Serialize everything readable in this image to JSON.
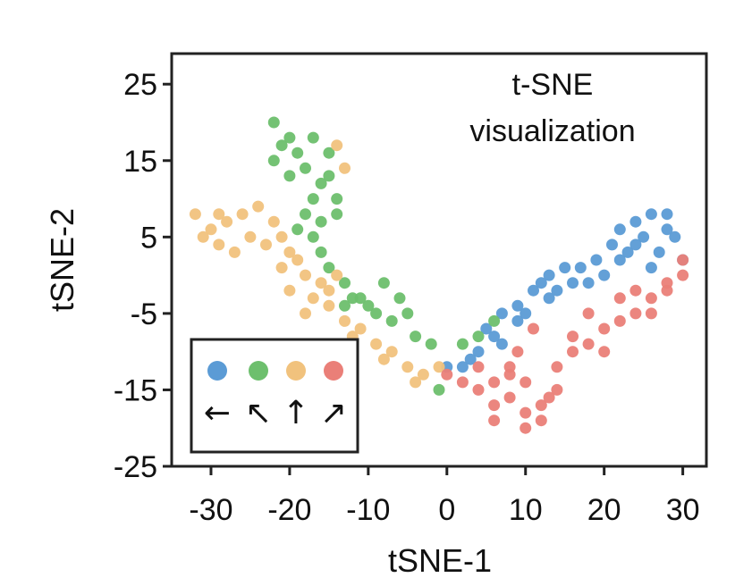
{
  "chart_data": {
    "type": "scatter",
    "annotation_lines": [
      "t-SNE",
      "visualization"
    ],
    "xlabel": "tSNE-1",
    "ylabel": "tSNE-2",
    "xlim": [
      -35,
      33
    ],
    "ylim": [
      -25,
      29
    ],
    "xticks": [
      -30,
      -20,
      -10,
      0,
      10,
      20,
      30
    ],
    "xtick_labels": [
      "-30",
      "-20",
      "-10",
      "0",
      "10",
      "20",
      "30"
    ],
    "yticks": [
      25,
      15,
      5,
      -5,
      -15,
      -25
    ],
    "ytick_labels": [
      "25",
      "15",
      "5",
      "-5",
      "-15",
      "-25"
    ],
    "grid": false,
    "legend_position": "bottom-left",
    "series": [
      {
        "color": "#5b9bd5",
        "marker": "←",
        "points": [
          [
            24,
            7
          ],
          [
            26,
            8
          ],
          [
            28,
            8
          ],
          [
            22,
            6
          ],
          [
            29,
            5
          ],
          [
            25,
            5
          ],
          [
            21,
            4
          ],
          [
            27,
            3
          ],
          [
            23,
            3
          ],
          [
            19,
            2
          ],
          [
            17,
            1
          ],
          [
            20,
            0
          ],
          [
            15,
            1
          ],
          [
            13,
            0
          ],
          [
            16,
            -1
          ],
          [
            11,
            -2
          ],
          [
            13,
            -3
          ],
          [
            9,
            -4
          ],
          [
            7,
            -5
          ],
          [
            9,
            -6
          ],
          [
            5,
            -7
          ],
          [
            7,
            -9
          ],
          [
            4,
            -10
          ],
          [
            2,
            -12
          ],
          [
            0,
            -12
          ],
          [
            22,
            2
          ],
          [
            30,
            2
          ],
          [
            26,
            1
          ],
          [
            18,
            -1
          ],
          [
            10,
            -5
          ],
          [
            6,
            -8
          ],
          [
            3,
            -11
          ],
          [
            24,
            4
          ],
          [
            28,
            6
          ],
          [
            14,
            -2
          ],
          [
            12,
            -1
          ]
        ]
      },
      {
        "color": "#6dbf6d",
        "marker": "↖",
        "points": [
          [
            -22,
            20
          ],
          [
            -20,
            18
          ],
          [
            -19,
            16
          ],
          [
            -22,
            15
          ],
          [
            -18,
            14
          ],
          [
            -16,
            12
          ],
          [
            -20,
            13
          ],
          [
            -17,
            10
          ],
          [
            -18,
            8
          ],
          [
            -19,
            6
          ],
          [
            -17,
            5
          ],
          [
            -16,
            3
          ],
          [
            -15,
            1
          ],
          [
            -13,
            -1
          ],
          [
            -12,
            -3
          ],
          [
            -10,
            -4
          ],
          [
            -8,
            -1
          ],
          [
            -6,
            -3
          ],
          [
            -5,
            -5
          ],
          [
            -15,
            13
          ],
          [
            -14,
            10
          ],
          [
            -15,
            16
          ],
          [
            -17,
            18
          ],
          [
            -21,
            17
          ],
          [
            -13,
            -4
          ],
          [
            -11,
            -3
          ],
          [
            -9,
            -5
          ],
          [
            -7,
            -6
          ],
          [
            -4,
            -8
          ],
          [
            -2,
            -9
          ],
          [
            2,
            -9
          ],
          [
            4,
            -8
          ],
          [
            6,
            -6
          ],
          [
            -1,
            -15
          ],
          [
            -16,
            7
          ],
          [
            -14,
            8
          ]
        ]
      },
      {
        "color": "#f1c27d",
        "marker": "↑",
        "points": [
          [
            -32,
            8
          ],
          [
            -30,
            6
          ],
          [
            -28,
            7
          ],
          [
            -29,
            4
          ],
          [
            -27,
            3
          ],
          [
            -25,
            5
          ],
          [
            -24,
            9
          ],
          [
            -22,
            7
          ],
          [
            -21,
            5
          ],
          [
            -20,
            3
          ],
          [
            -19,
            2
          ],
          [
            -18,
            0
          ],
          [
            -20,
            -2
          ],
          [
            -17,
            -3
          ],
          [
            -16,
            -1
          ],
          [
            -15,
            -4
          ],
          [
            -14,
            0
          ],
          [
            -13,
            -6
          ],
          [
            -11,
            -7
          ],
          [
            -9,
            -9
          ],
          [
            -7,
            -10
          ],
          [
            -5,
            -12
          ],
          [
            -3,
            -13
          ],
          [
            -1,
            -12
          ],
          [
            -26,
            8
          ],
          [
            -23,
            4
          ],
          [
            -21,
            1
          ],
          [
            -18,
            -5
          ],
          [
            -12,
            -8
          ],
          [
            -8,
            -11
          ],
          [
            -4,
            -14
          ],
          [
            -13,
            14
          ],
          [
            -14,
            17
          ],
          [
            -15,
            -2
          ],
          [
            -29,
            8
          ],
          [
            -31,
            5
          ]
        ]
      },
      {
        "color": "#ea7f78",
        "marker": "↗",
        "points": [
          [
            2,
            -14
          ],
          [
            4,
            -15
          ],
          [
            6,
            -17
          ],
          [
            8,
            -16
          ],
          [
            10,
            -18
          ],
          [
            12,
            -17
          ],
          [
            12,
            -19
          ],
          [
            10,
            -14
          ],
          [
            8,
            -13
          ],
          [
            14,
            -12
          ],
          [
            16,
            -10
          ],
          [
            18,
            -9
          ],
          [
            20,
            -7
          ],
          [
            22,
            -6
          ],
          [
            24,
            -5
          ],
          [
            26,
            -3
          ],
          [
            28,
            -2
          ],
          [
            30,
            0
          ],
          [
            30,
            2
          ],
          [
            16,
            -8
          ],
          [
            14,
            -15
          ],
          [
            6,
            -14
          ],
          [
            4,
            -12
          ],
          [
            18,
            -5
          ],
          [
            22,
            -3
          ],
          [
            6,
            -19
          ],
          [
            10,
            -20
          ],
          [
            13,
            -16
          ],
          [
            0,
            -13
          ],
          [
            8,
            -12
          ],
          [
            20,
            -10
          ],
          [
            26,
            -5
          ],
          [
            24,
            -2
          ],
          [
            11,
            -7
          ],
          [
            9,
            -10
          ],
          [
            28,
            -1
          ]
        ]
      }
    ]
  }
}
